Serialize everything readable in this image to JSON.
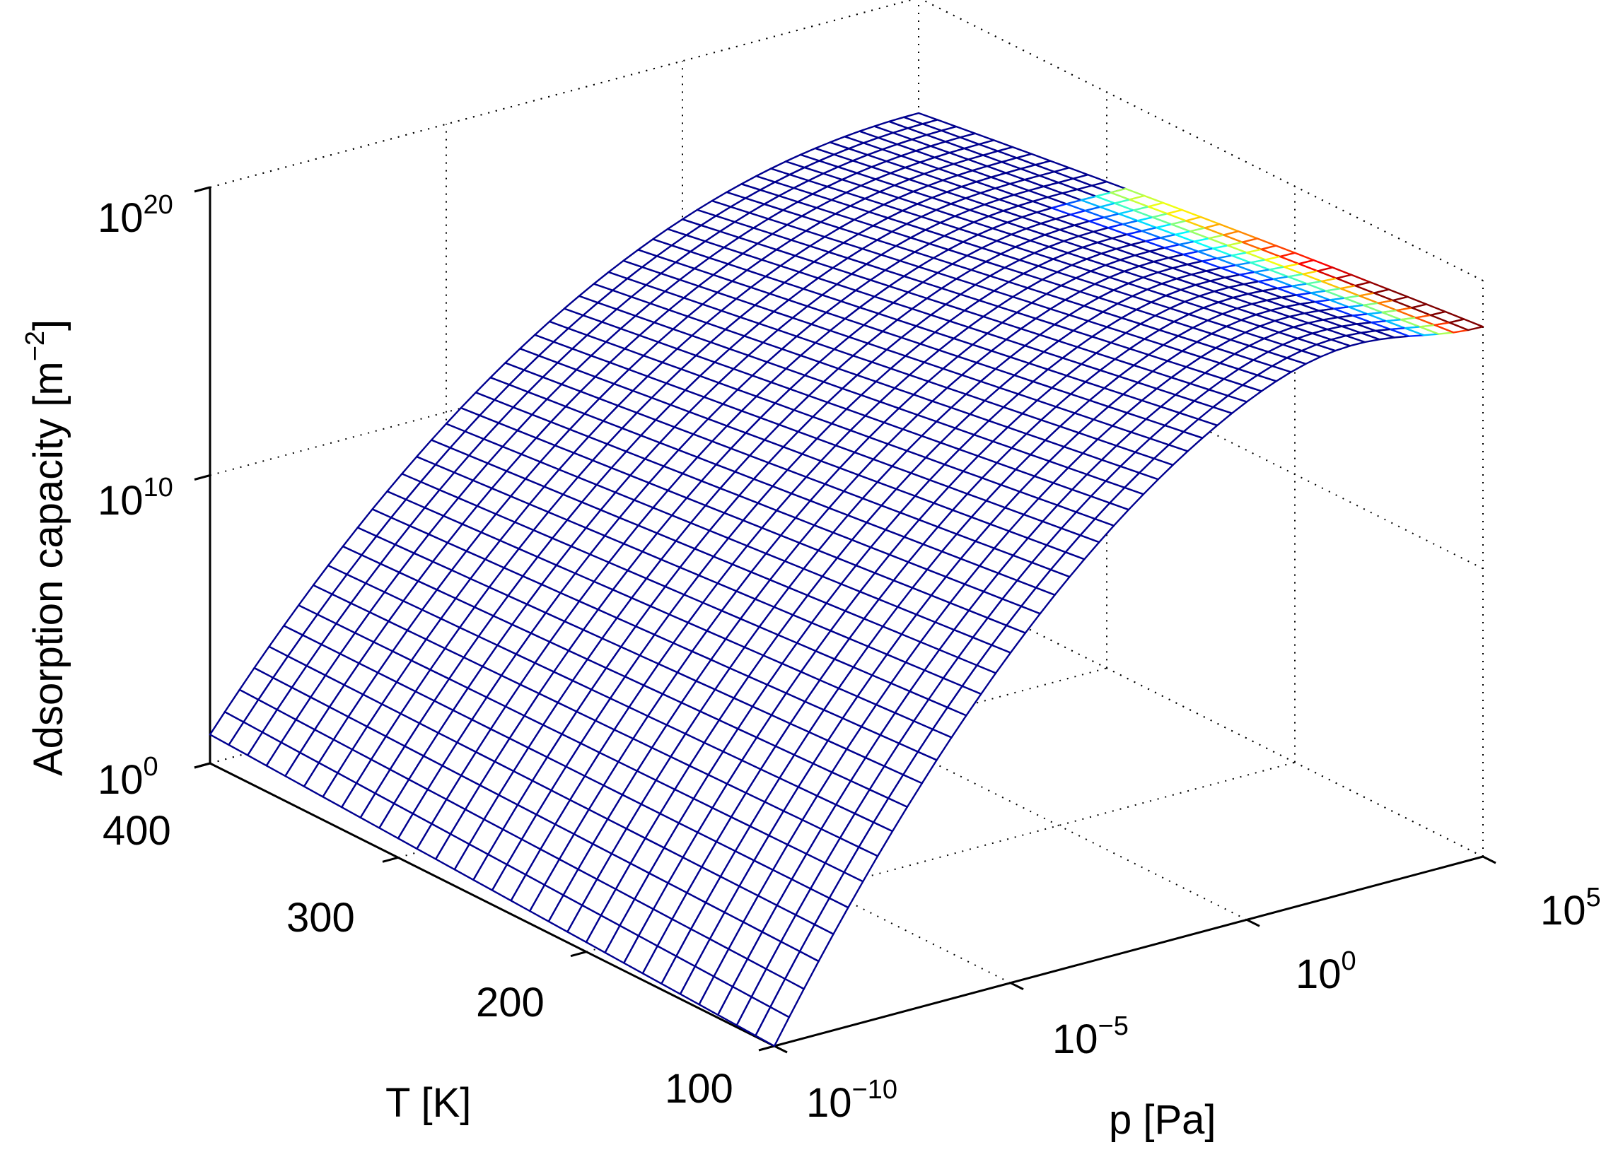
{
  "chart_data": {
    "type": "surface",
    "title": "",
    "xlabel": "p [Pa]",
    "ylabel": "T [K]",
    "zlabel": "Adsorption capacity [m",
    "zlabel_exponent": "−2",
    "zlabel_suffix": "]",
    "x_scale": "log",
    "z_scale": "log",
    "xlim_log10": [
      -10,
      5
    ],
    "ylim": [
      100,
      400
    ],
    "zlim_log10": [
      0,
      20
    ],
    "x_ticks": [
      {
        "base": "10",
        "exp": "−10"
      },
      {
        "base": "10",
        "exp": "−5"
      },
      {
        "base": "10",
        "exp": "0"
      },
      {
        "base": "10",
        "exp": "5"
      }
    ],
    "y_ticks": [
      "100",
      "200",
      "300",
      "400"
    ],
    "z_ticks": [
      {
        "base": "10",
        "exp": "0"
      },
      {
        "base": "10",
        "exp": "10"
      },
      {
        "base": "10",
        "exp": "20"
      }
    ],
    "grid": true,
    "colormap": "jet",
    "corner_values_log10": {
      "p_1e-10_T_100": 0.0,
      "p_1e-10_T_400": 1.0,
      "p_1e5_T_100": 20.0,
      "p_1e5_T_400": 16.0
    },
    "colors": {
      "surface_edge": "#00008f",
      "surface_fill": "#ffffff"
    }
  }
}
